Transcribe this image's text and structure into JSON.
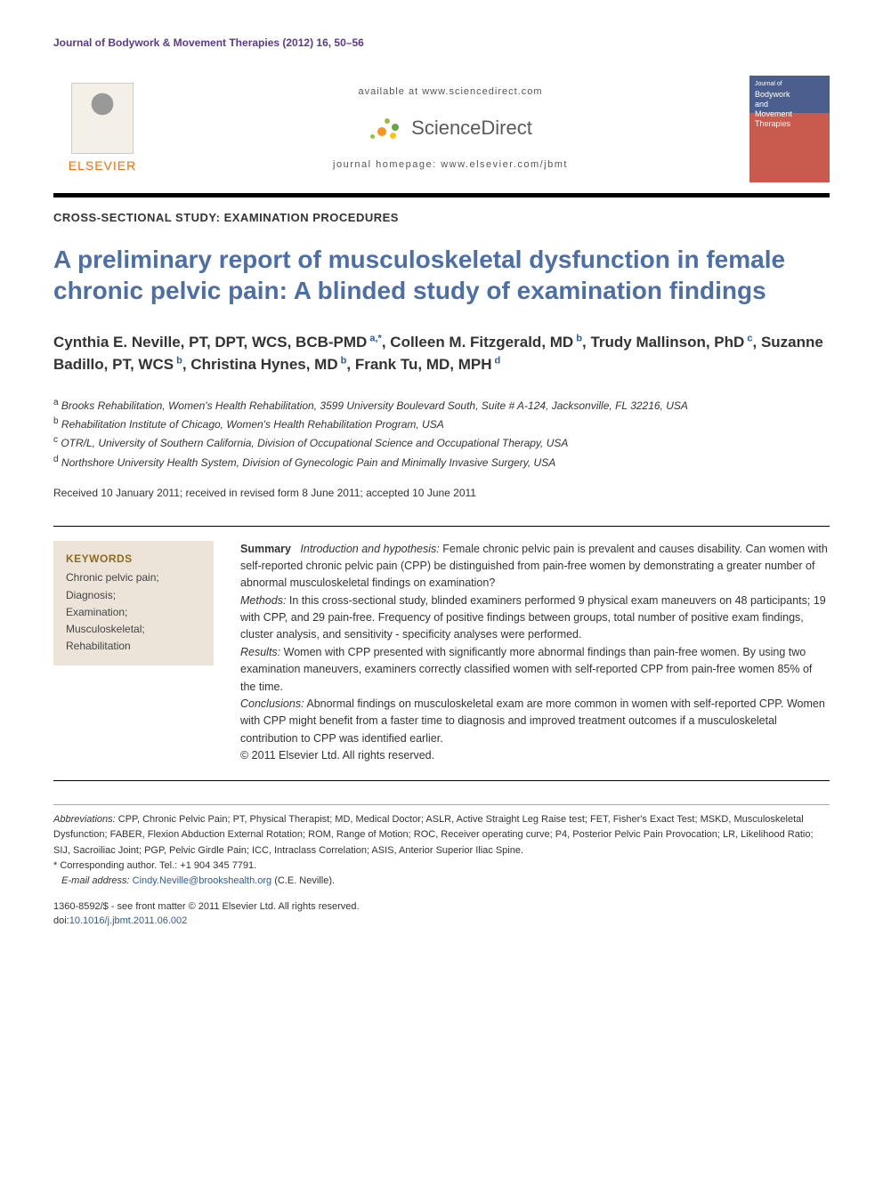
{
  "running_head": "Journal of Bodywork & Movement Therapies (2012) 16, 50–56",
  "masthead": {
    "publisher_name": "ELSEVIER",
    "available_text": "available at www.sciencedirect.com",
    "sd_name": "ScienceDirect",
    "homepage_text": "journal homepage: www.elsevier.com/jbmt",
    "cover_small": "Journal of",
    "cover_line1": "Bodywork",
    "cover_line2": "and",
    "cover_line3": "Movement",
    "cover_line4": "Therapies"
  },
  "article_type": "CROSS-SECTIONAL STUDY: EXAMINATION PROCEDURES",
  "title": "A preliminary report of musculoskeletal dysfunction in female chronic pelvic pain: A blinded study of examination findings",
  "authors": [
    {
      "name": "Cynthia E. Neville, PT, DPT, WCS, BCB-PMD",
      "marks": "a,*"
    },
    {
      "name": "Colleen M. Fitzgerald, MD",
      "marks": "b"
    },
    {
      "name": "Trudy Mallinson, PhD",
      "marks": "c"
    },
    {
      "name": "Suzanne Badillo, PT, WCS",
      "marks": "b"
    },
    {
      "name": "Christina Hynes, MD",
      "marks": "b"
    },
    {
      "name": "Frank Tu, MD, MPH",
      "marks": "d"
    }
  ],
  "affiliations": [
    {
      "mark": "a",
      "text": "Brooks Rehabilitation, Women's Health Rehabilitation, 3599 University Boulevard South, Suite # A-124, Jacksonville, FL 32216, USA"
    },
    {
      "mark": "b",
      "text": "Rehabilitation Institute of Chicago, Women's Health Rehabilitation Program, USA"
    },
    {
      "mark": "c",
      "text": "OTR/L, University of Southern California, Division of Occupational Science and Occupational Therapy, USA"
    },
    {
      "mark": "d",
      "text": "Northshore University Health System, Division of Gynecologic Pain and Minimally Invasive Surgery, USA"
    }
  ],
  "dates": "Received 10 January 2011; received in revised form 8 June 2011; accepted 10 June 2011",
  "keywords": {
    "heading": "KEYWORDS",
    "items": "Chronic pelvic pain;\nDiagnosis;\nExamination;\nMusculoskeletal;\nRehabilitation"
  },
  "summary": {
    "lead": "Summary",
    "intro_label": "Introduction and hypothesis:",
    "intro_text": " Female chronic pelvic pain is prevalent and causes disability. Can women with self-reported chronic pelvic pain (CPP) be distinguished from pain-free women by demonstrating a greater number of abnormal musculoskeletal findings on examination?",
    "methods_label": "Methods:",
    "methods_text": " In this cross-sectional study, blinded examiners performed 9 physical exam maneuvers on 48 participants; 19 with CPP, and 29 pain-free. Frequency of positive findings between groups, total number of positive exam findings, cluster analysis, and sensitivity - specificity analyses were performed.",
    "results_label": "Results:",
    "results_text": " Women with CPP presented with significantly more abnormal findings than pain-free women. By using two examination maneuvers, examiners correctly classified women with self-reported CPP from pain-free women 85% of the time.",
    "conclusions_label": "Conclusions:",
    "conclusions_text": " Abnormal findings on musculoskeletal exam are more common in women with self-reported CPP. Women with CPP might benefit from a faster time to diagnosis and improved treatment outcomes if a musculoskeletal contribution to CPP was identified earlier.",
    "copyright": "© 2011 Elsevier Ltd. All rights reserved."
  },
  "footnotes": {
    "abbrev_label": "Abbreviations:",
    "abbrev_text": " CPP, Chronic Pelvic Pain; PT, Physical Therapist; MD, Medical Doctor; ASLR, Active Straight Leg Raise test; FET, Fisher's Exact Test; MSKD, Musculoskeletal Dysfunction; FABER, Flexion Abduction External Rotation; ROM, Range of Motion; ROC, Receiver operating curve; P4, Posterior Pelvic Pain Provocation; LR, Likelihood Ratio; SIJ, Sacroiliac Joint; PGP, Pelvic Girdle Pain; ICC, Intraclass Correlation; ASIS, Anterior Superior Iliac Spine.",
    "corr_label": "* Corresponding author. Tel.: +1 904 345 7791.",
    "email_label": "E-mail address:",
    "email": "Cindy.Neville@brookshealth.org",
    "email_suffix": " (C.E. Neville)."
  },
  "footer": {
    "line1": "1360-8592/$ - see front matter © 2011 Elsevier Ltd. All rights reserved.",
    "doi_prefix": "doi:",
    "doi": "10.1016/j.jbmt.2011.06.002"
  },
  "colors": {
    "title_color": "#4d6fa8",
    "running_head_color": "#5b3a8e",
    "link_color": "#2e5aa0",
    "elsevier_orange": "#ff6c00",
    "keywords_bg": "#ece4d8",
    "keywords_head": "#8a6b1f"
  }
}
